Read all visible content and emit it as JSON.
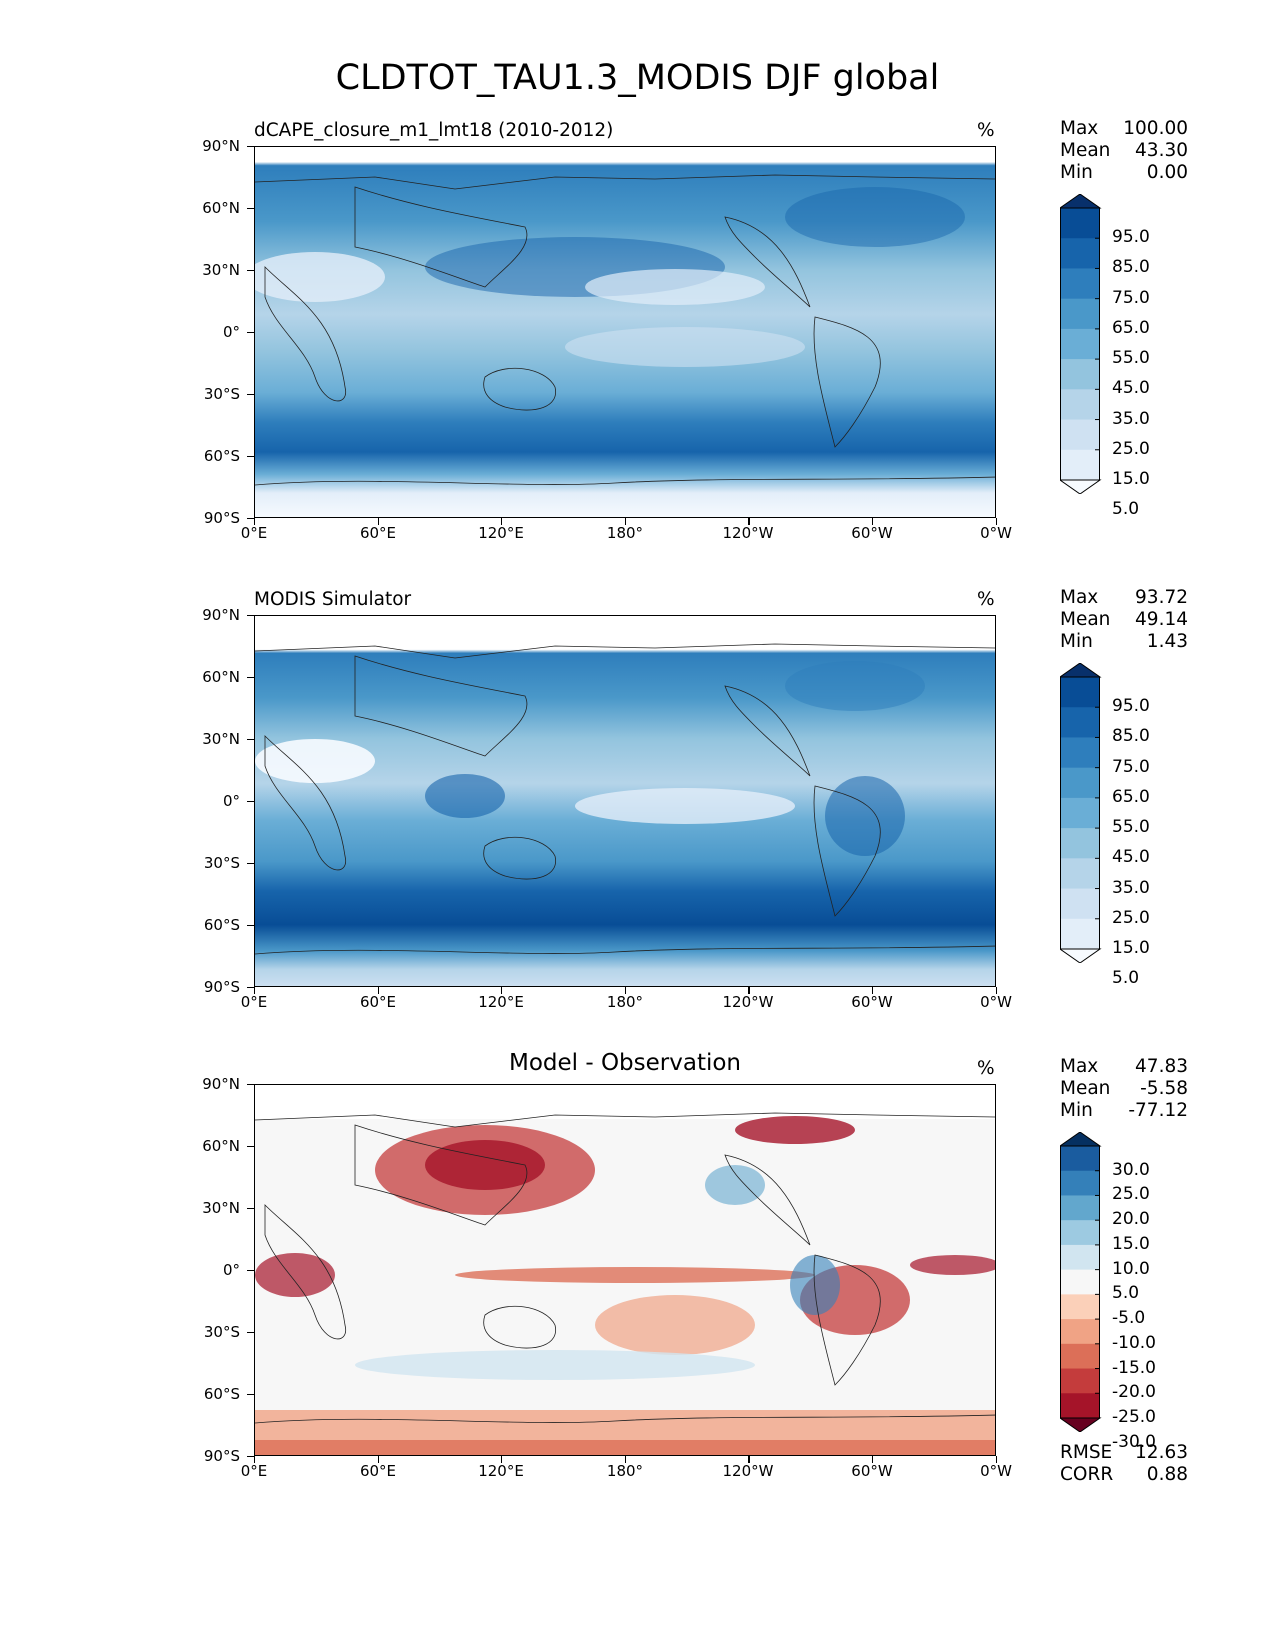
{
  "title": "CLDTOT_TAU1.3_MODIS DJF global",
  "axes": {
    "lat_ticks": [
      "90°N",
      "60°N",
      "30°N",
      "0°",
      "30°S",
      "60°S",
      "90°S"
    ],
    "lon_ticks": [
      "0°E",
      "60°E",
      "120°E",
      "180°",
      "120°W",
      "60°W",
      "0°W"
    ]
  },
  "panels": [
    {
      "title_left": "dCAPE_closure_m1_lmt18 (2010-2012)",
      "title_center": "",
      "unit": "%",
      "stats": [
        [
          "Max",
          "100.00"
        ],
        [
          "Mean",
          "43.30"
        ],
        [
          "Min",
          "0.00"
        ]
      ],
      "colorbar": {
        "levels": [
          "95.0",
          "85.0",
          "75.0",
          "65.0",
          "55.0",
          "45.0",
          "35.0",
          "25.0",
          "15.0",
          "5.0"
        ],
        "colors": [
          "#f7fbff",
          "#e3eef9",
          "#cfe1f2",
          "#b5d4e9",
          "#93c4de",
          "#6aaed6",
          "#4a98c9",
          "#2e7ebc",
          "#1764ab",
          "#084d96",
          "#08306b"
        ]
      }
    },
    {
      "title_left": "MODIS Simulator",
      "title_center": "",
      "unit": "%",
      "stats": [
        [
          "Max",
          "93.72"
        ],
        [
          "Mean",
          "49.14"
        ],
        [
          "Min",
          "1.43"
        ]
      ],
      "colorbar": {
        "levels": [
          "95.0",
          "85.0",
          "75.0",
          "65.0",
          "55.0",
          "45.0",
          "35.0",
          "25.0",
          "15.0",
          "5.0"
        ],
        "colors": [
          "#f7fbff",
          "#e3eef9",
          "#cfe1f2",
          "#b5d4e9",
          "#93c4de",
          "#6aaed6",
          "#4a98c9",
          "#2e7ebc",
          "#1764ab",
          "#084d96",
          "#08306b"
        ]
      }
    },
    {
      "title_left": "",
      "title_center": "Model - Observation",
      "unit": "%",
      "stats": [
        [
          "Max",
          "47.83"
        ],
        [
          "Mean",
          "-5.58"
        ],
        [
          "Min",
          "-77.12"
        ]
      ],
      "extra_stats": [
        [
          "RMSE",
          "12.63"
        ],
        [
          "CORR",
          "0.88"
        ]
      ],
      "colorbar": {
        "levels": [
          "30.0",
          "25.0",
          "20.0",
          "15.0",
          "10.0",
          "5.0",
          "-5.0",
          "-10.0",
          "-15.0",
          "-20.0",
          "-25.0",
          "-30.0"
        ],
        "colors": [
          "#67001f",
          "#a51429",
          "#c43c3c",
          "#dc6f58",
          "#f0a385",
          "#fbd0b9",
          "#f7f7f7",
          "#d1e5f0",
          "#9dcae1",
          "#62a7cd",
          "#3480b9",
          "#1a5c9f",
          "#053061"
        ]
      }
    }
  ]
}
